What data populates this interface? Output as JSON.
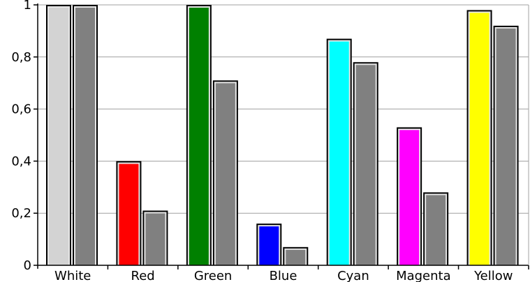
{
  "chart_data": {
    "type": "bar",
    "categories": [
      "White",
      "Red",
      "Green",
      "Blue",
      "Cyan",
      "Magenta",
      "Yellow"
    ],
    "ylim": [
      0,
      1
    ],
    "yticks": [
      "0",
      "0,2",
      "0,4",
      "0,6",
      "0,8",
      "1"
    ],
    "grid": true,
    "series": [
      {
        "values": [
          1.0,
          0.4,
          1.0,
          0.16,
          0.87,
          0.53,
          0.98
        ],
        "colors": [
          "#d3d3d3",
          "#ff0000",
          "#008000",
          "#0000ff",
          "#00ffff",
          "#ff00ff",
          "#ffff00"
        ]
      },
      {
        "values": [
          1.0,
          0.21,
          0.71,
          0.07,
          0.78,
          0.28,
          0.92
        ],
        "colors": [
          "#808080",
          "#808080",
          "#808080",
          "#808080",
          "#808080",
          "#808080",
          "#808080"
        ]
      }
    ],
    "colors": {
      "bar_outline": "#000000",
      "bar_inner_highlight": "#e6e6e6",
      "grid": "#a0a0a0",
      "axis": "#000000"
    }
  }
}
